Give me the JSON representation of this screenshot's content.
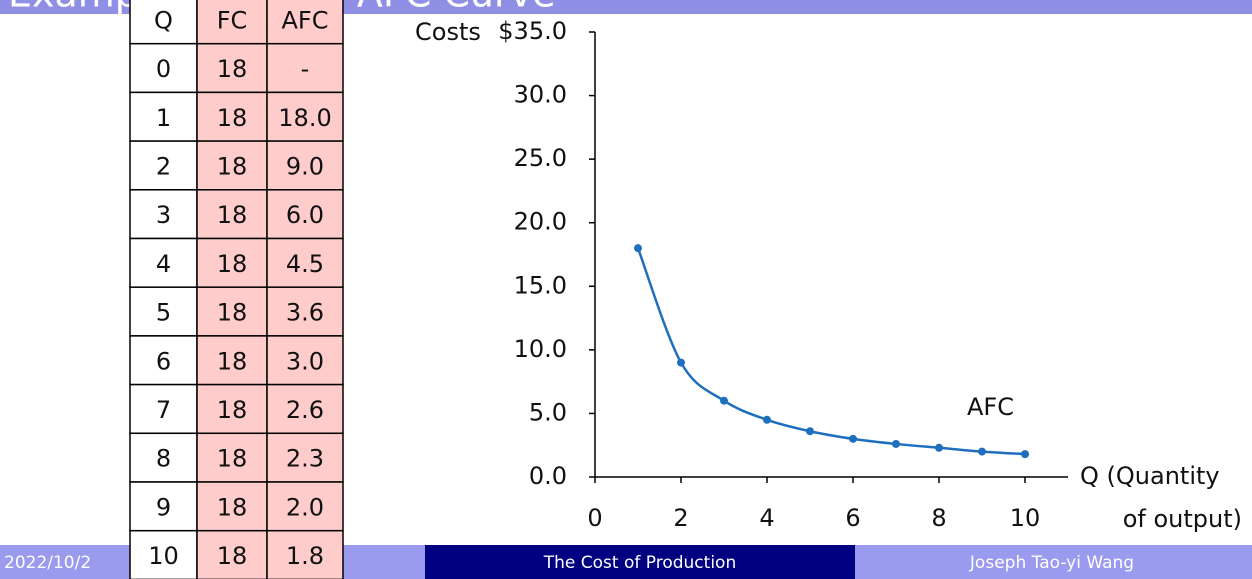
{
  "title": "Example: Algebra AFC Curve",
  "table": {
    "header": [
      "Q",
      "FC",
      "AFC"
    ],
    "rows": [
      [
        0,
        18,
        "-"
      ],
      [
        1,
        18,
        "18.0"
      ],
      [
        2,
        18,
        "9.0"
      ],
      [
        3,
        18,
        "6.0"
      ],
      [
        4,
        18,
        "4.5"
      ],
      [
        5,
        18,
        "3.6"
      ],
      [
        6,
        18,
        "3.0"
      ],
      [
        7,
        18,
        "2.6"
      ],
      [
        8,
        18,
        "2.3"
      ],
      [
        9,
        18,
        "2.0"
      ],
      [
        10,
        18,
        "1.8"
      ]
    ]
  },
  "chart_data": {
    "type": "line",
    "ylabel": "Costs",
    "xlabel": [
      "Q (Quantity",
      "of output)"
    ],
    "x": [
      1,
      2,
      3,
      4,
      5,
      6,
      7,
      8,
      9,
      10
    ],
    "series": [
      {
        "name": "AFC",
        "color": "#1f6fbf",
        "values": [
          18,
          9,
          6,
          4.5,
          3.6,
          3,
          2.6,
          2.3,
          2,
          1.8
        ]
      }
    ],
    "xlim": [
      0,
      10
    ],
    "xticks": [
      0,
      2,
      4,
      6,
      8,
      10
    ],
    "ylim": [
      0,
      35
    ],
    "yticks": [
      {
        "value": 0,
        "label": "0.0"
      },
      {
        "value": 5,
        "label": "5.0"
      },
      {
        "value": 10,
        "label": "10.0"
      },
      {
        "value": 15,
        "label": "15.0"
      },
      {
        "value": 20,
        "label": "20.0"
      },
      {
        "value": 25,
        "label": "25.0"
      },
      {
        "value": 30,
        "label": "30.0"
      },
      {
        "value": 35,
        "label": "$35.0"
      }
    ]
  },
  "footer": {
    "date": "2022/10/2",
    "center": "The Cost of Production",
    "author": "Joseph Tao-yi Wang"
  }
}
